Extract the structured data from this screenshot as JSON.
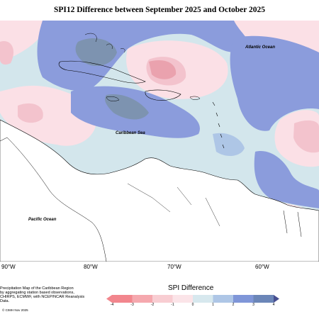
{
  "title": "SPI12 Difference between September 2025 and October 2025",
  "map_labels": {
    "atlantic": "Atlantic Ocean",
    "caribbean": "Caribbean Sea",
    "pacific": "Pacific Ocean"
  },
  "longitudes": [
    "90°W",
    "80°W",
    "70°W",
    "60°W"
  ],
  "legend": {
    "title": "SPI Difference",
    "ticks": [
      "-4",
      "-3",
      "-2",
      "-1",
      "0",
      "1",
      "2",
      "3",
      "4"
    ],
    "colors": [
      "#f2868d",
      "#f5a8ae",
      "#f8cdd2",
      "#fbe4e8",
      "#d7e8ee",
      "#aec6e6",
      "#7f96d8",
      "#6b86b8",
      "#474f90"
    ]
  },
  "notes": {
    "lines": [
      "Precipitation Map of the Caribbean Region",
      "by aggregating station based observations,",
      "CHIRPS, ECMWF, with NCEP/NCAR Reanalysis Data."
    ],
    "credit": "© CIMH Nov 2025"
  },
  "colors": {
    "pink_light": "#fbe0e6",
    "pink_mid": "#f3c3cd",
    "pink_deep": "#eaa2ae",
    "teal_light": "#d3e6ec",
    "blue_mid": "#8b9cdc",
    "steel": "#7d93b0",
    "land": "#ffffff"
  }
}
